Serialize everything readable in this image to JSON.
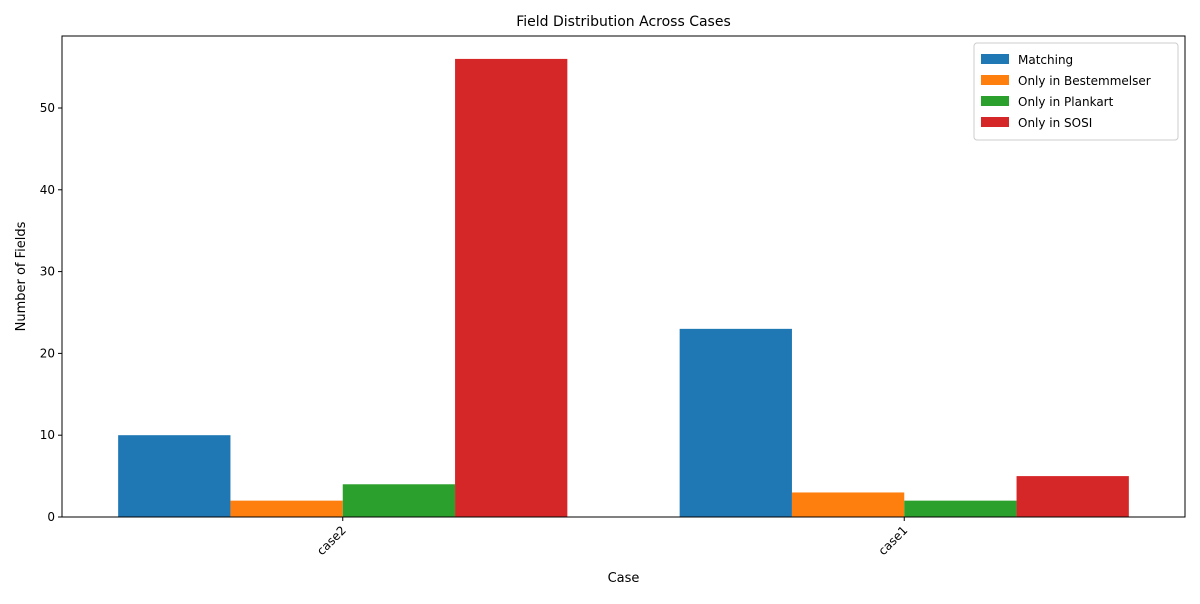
{
  "chart_data": {
    "type": "bar",
    "title": "Field Distribution Across Cases",
    "xlabel": "Case",
    "ylabel": "Number of Fields",
    "categories": [
      "case2",
      "case1"
    ],
    "series": [
      {
        "name": "Matching",
        "color": "#1f77b4",
        "values": [
          10,
          23
        ]
      },
      {
        "name": "Only in Bestemmelser",
        "color": "#ff7f0e",
        "values": [
          2,
          3
        ]
      },
      {
        "name": "Only in Plankart",
        "color": "#2ca02c",
        "values": [
          4,
          2
        ]
      },
      {
        "name": "Only in SOSI",
        "color": "#d62728",
        "values": [
          56,
          5
        ]
      }
    ],
    "ylim": [
      0,
      58.8
    ],
    "yticks": [
      0,
      10,
      20,
      30,
      40,
      50
    ],
    "grid": false,
    "legend_position": "top-right",
    "xtick_rotation_deg": 45
  }
}
